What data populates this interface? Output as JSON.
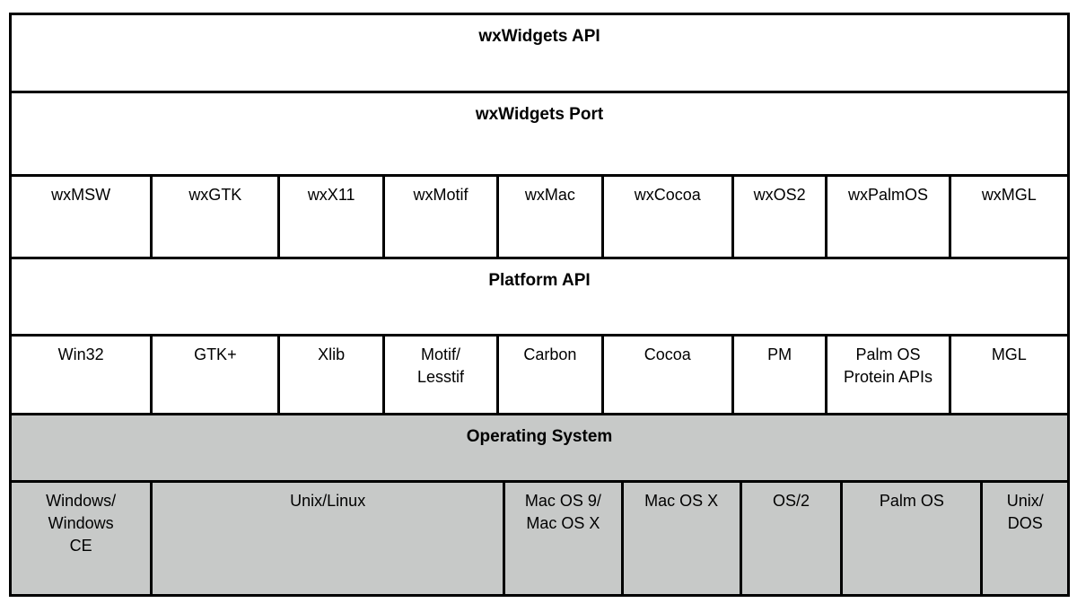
{
  "diagram": {
    "layers": {
      "api": {
        "label": "wxWidgets API"
      },
      "port": {
        "label": "wxWidgets Port"
      },
      "ports": {
        "cells": [
          "wxMSW",
          "wxGTK",
          "wxX11",
          "wxMotif",
          "wxMac",
          "wxCocoa",
          "wxOS2",
          "wxPalmOS",
          "wxMGL"
        ]
      },
      "platform_api": {
        "label": "Platform API"
      },
      "platforms": {
        "cells": [
          "Win32",
          "GTK+",
          "Xlib",
          "Motif/\nLesstif",
          "Carbon",
          "Cocoa",
          "PM",
          "Palm OS\nProtein APIs",
          "MGL"
        ]
      },
      "os_header": {
        "label": "Operating System"
      },
      "os": {
        "cells": [
          "Windows/\nWindows\nCE",
          "Unix/Linux",
          "Mac OS 9/\nMac OS X",
          "Mac OS X",
          "OS/2",
          "Palm OS",
          "Unix/\nDOS"
        ]
      }
    },
    "colors": {
      "border": "#000000",
      "gray_fill": "#c7c9c8",
      "background": "#ffffff",
      "text": "#000000"
    }
  }
}
